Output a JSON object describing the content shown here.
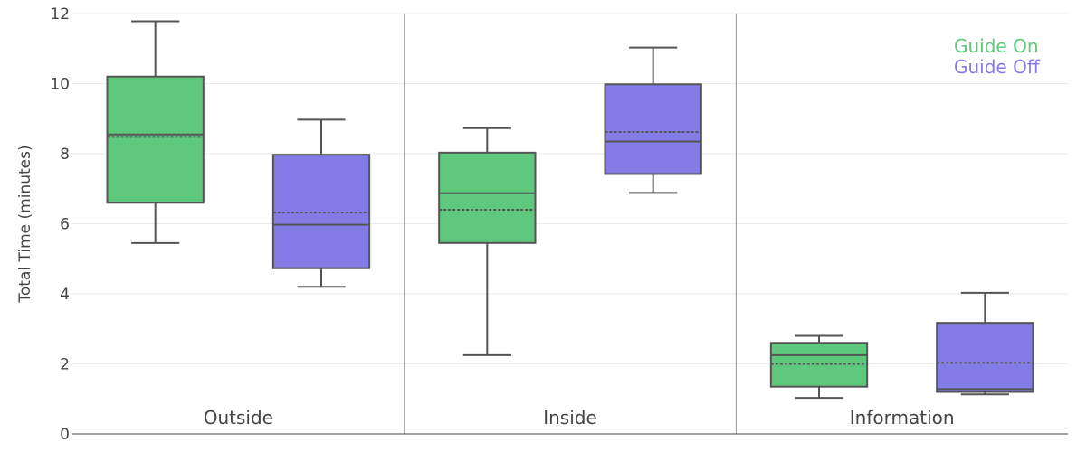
{
  "chart_data": {
    "type": "box",
    "ylabel": "Total Time (minutes)",
    "ylim": [
      0,
      12
    ],
    "yticks": [
      0,
      2,
      4,
      6,
      8,
      10,
      12
    ],
    "categories": [
      "Outside",
      "Inside",
      "Information"
    ],
    "legend": {
      "placement": "top-right"
    },
    "grid": true,
    "series": [
      {
        "name": "Guide On",
        "color": "#5ec87c",
        "boxes": [
          {
            "min": 5.45,
            "q1": 6.6,
            "median": 8.55,
            "mean": 8.48,
            "q3": 10.2,
            "max": 11.78
          },
          {
            "min": 2.25,
            "q1": 5.45,
            "median": 6.87,
            "mean": 6.4,
            "q3": 8.03,
            "max": 8.73
          },
          {
            "min": 1.03,
            "q1": 1.35,
            "median": 2.25,
            "mean": 2.0,
            "q3": 2.6,
            "max": 2.8
          }
        ]
      },
      {
        "name": "Guide Off",
        "color": "#837ce6",
        "boxes": [
          {
            "min": 4.2,
            "q1": 4.73,
            "median": 5.97,
            "mean": 6.32,
            "q3": 7.97,
            "max": 8.97
          },
          {
            "min": 6.88,
            "q1": 7.42,
            "median": 8.35,
            "mean": 8.62,
            "q3": 9.98,
            "max": 11.03
          },
          {
            "min": 1.13,
            "q1": 1.2,
            "median": 1.28,
            "mean": 2.03,
            "q3": 3.17,
            "max": 4.03
          }
        ]
      }
    ]
  }
}
